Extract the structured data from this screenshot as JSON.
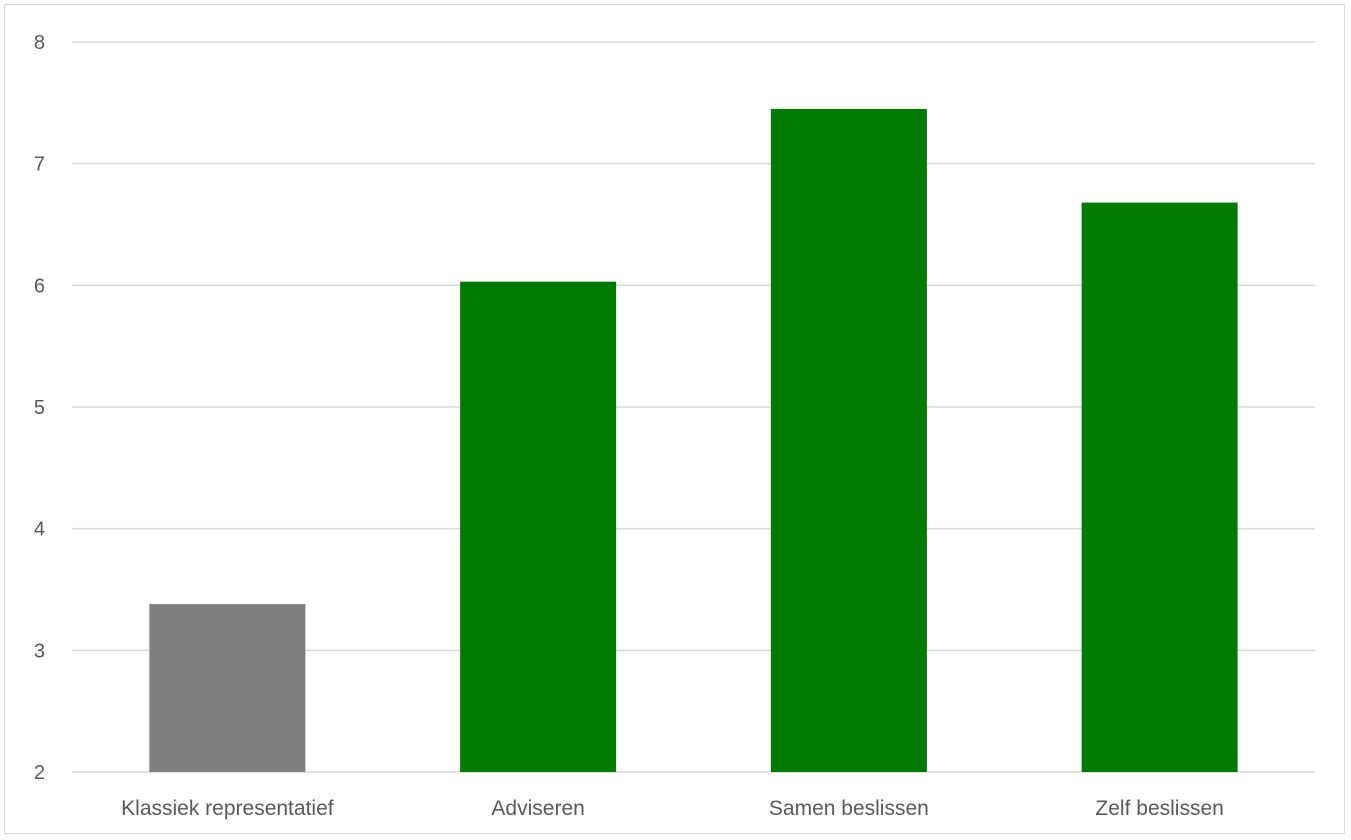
{
  "chart_data": {
    "type": "bar",
    "title": "",
    "xlabel": "",
    "ylabel": "",
    "categories": [
      "Klassiek representatief",
      "Adviseren",
      "Samen beslissen",
      "Zelf beslissen"
    ],
    "values": [
      3.38,
      6.03,
      7.45,
      6.68
    ],
    "bar_colors": [
      "#7f7f7f",
      "#007a00",
      "#007a00",
      "#007a00"
    ],
    "ylim": [
      2,
      8
    ],
    "y_ticks": [
      "2",
      "3",
      "4",
      "5",
      "6",
      "7",
      "8"
    ],
    "grid": true,
    "legend": "none"
  }
}
